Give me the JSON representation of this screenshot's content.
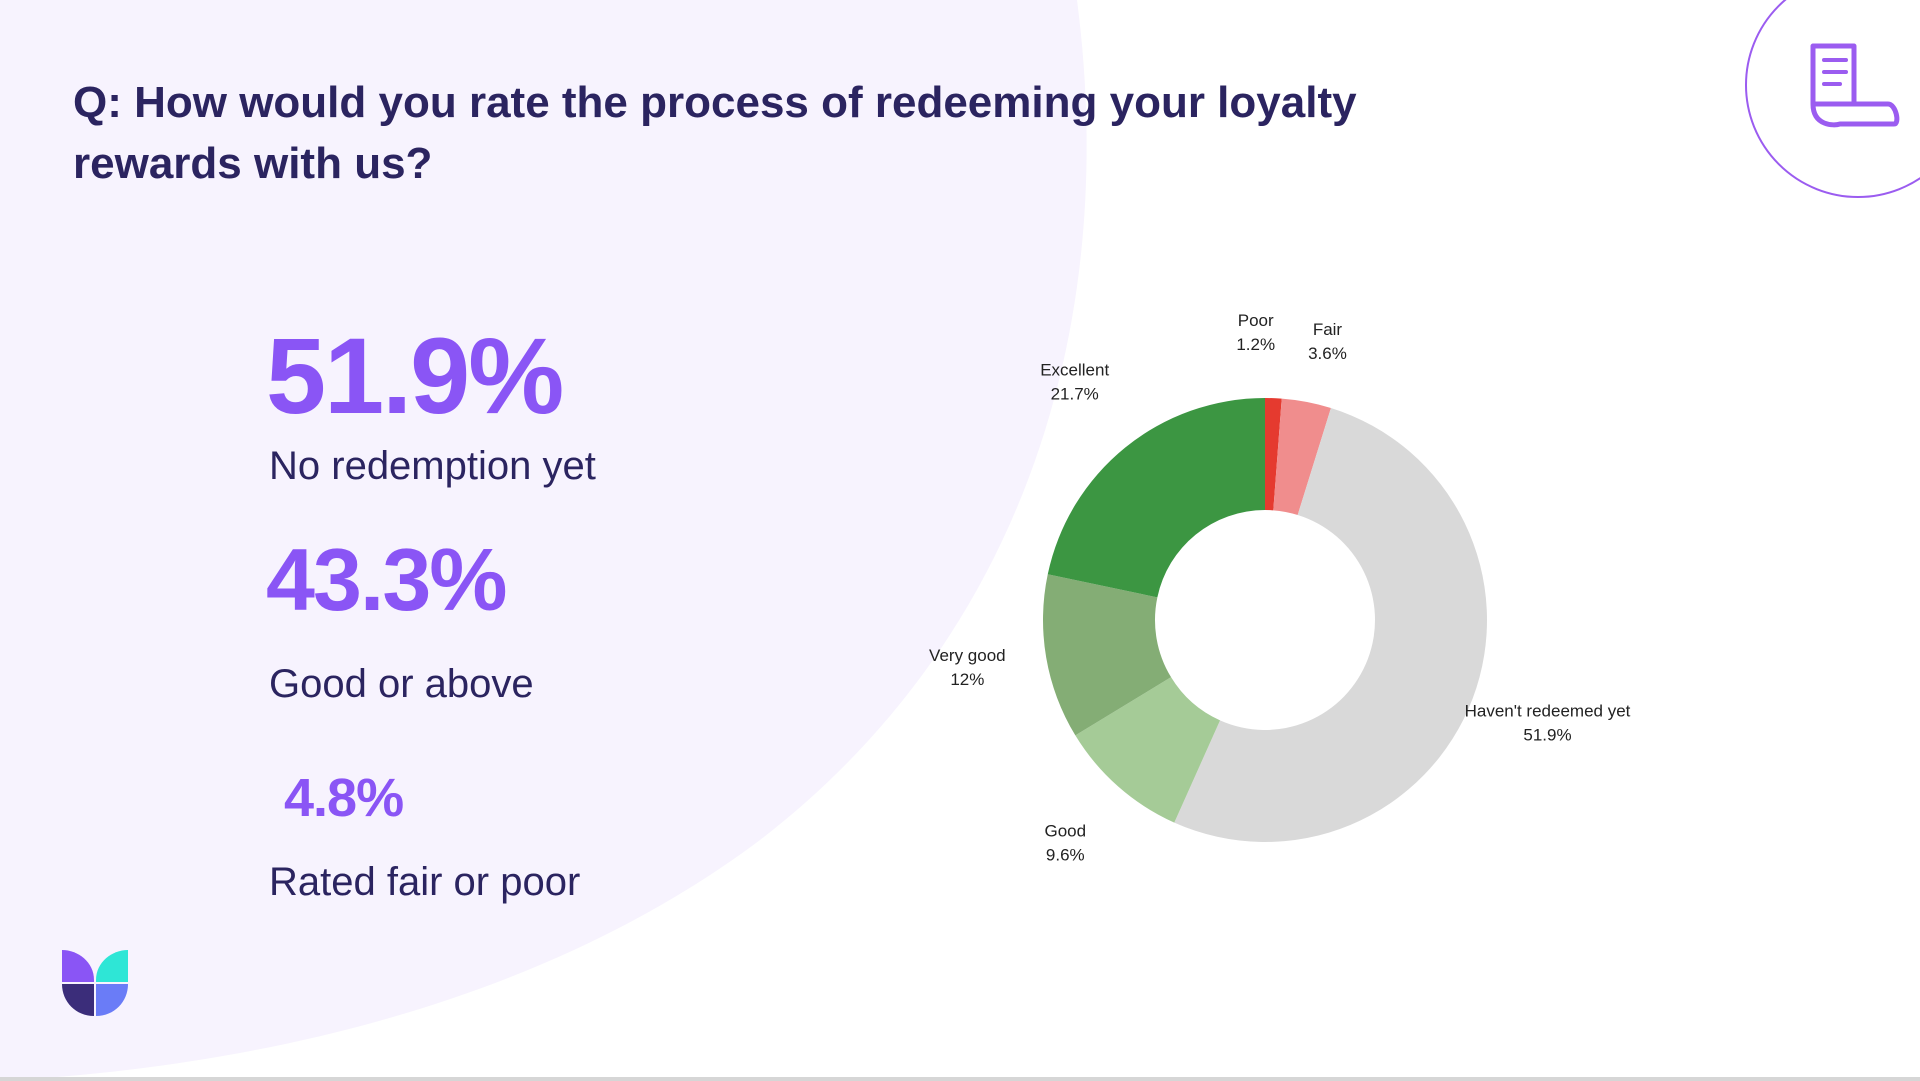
{
  "title": "Q: How would you rate the process of redeeming your loyalty rewards with us?",
  "stats": [
    {
      "value": "51.9%",
      "label": "No redemption yet"
    },
    {
      "value": "43.3%",
      "label": "Good or above"
    },
    {
      "value": "4.8%",
      "label": "Rated fair or poor"
    }
  ],
  "colors": {
    "accent": "#8a55f5",
    "heading": "#2b2460",
    "background_shape": "#f7f3fe",
    "icon_stroke": "#9b5cf0"
  },
  "icons": {
    "document": "document-scroll-icon",
    "logo": "brand-logo"
  },
  "chart_data": {
    "type": "pie",
    "donut": true,
    "slices": [
      {
        "label": "Poor",
        "display": "1.2%",
        "value": 1.2,
        "color": "#e53a2f"
      },
      {
        "label": "Fair",
        "display": "3.6%",
        "value": 3.6,
        "color": "#f08d8d"
      },
      {
        "label": "Haven't redeemed yet",
        "display": "51.9%",
        "value": 51.9,
        "color": "#d9d9d9"
      },
      {
        "label": "Good",
        "display": "9.6%",
        "value": 9.6,
        "color": "#a5cb97"
      },
      {
        "label": "Very good",
        "display": "12%",
        "value": 12,
        "color": "#84ad75"
      },
      {
        "label": "Excellent",
        "display": "21.7%",
        "value": 21.7,
        "color": "#3c9642"
      }
    ]
  }
}
